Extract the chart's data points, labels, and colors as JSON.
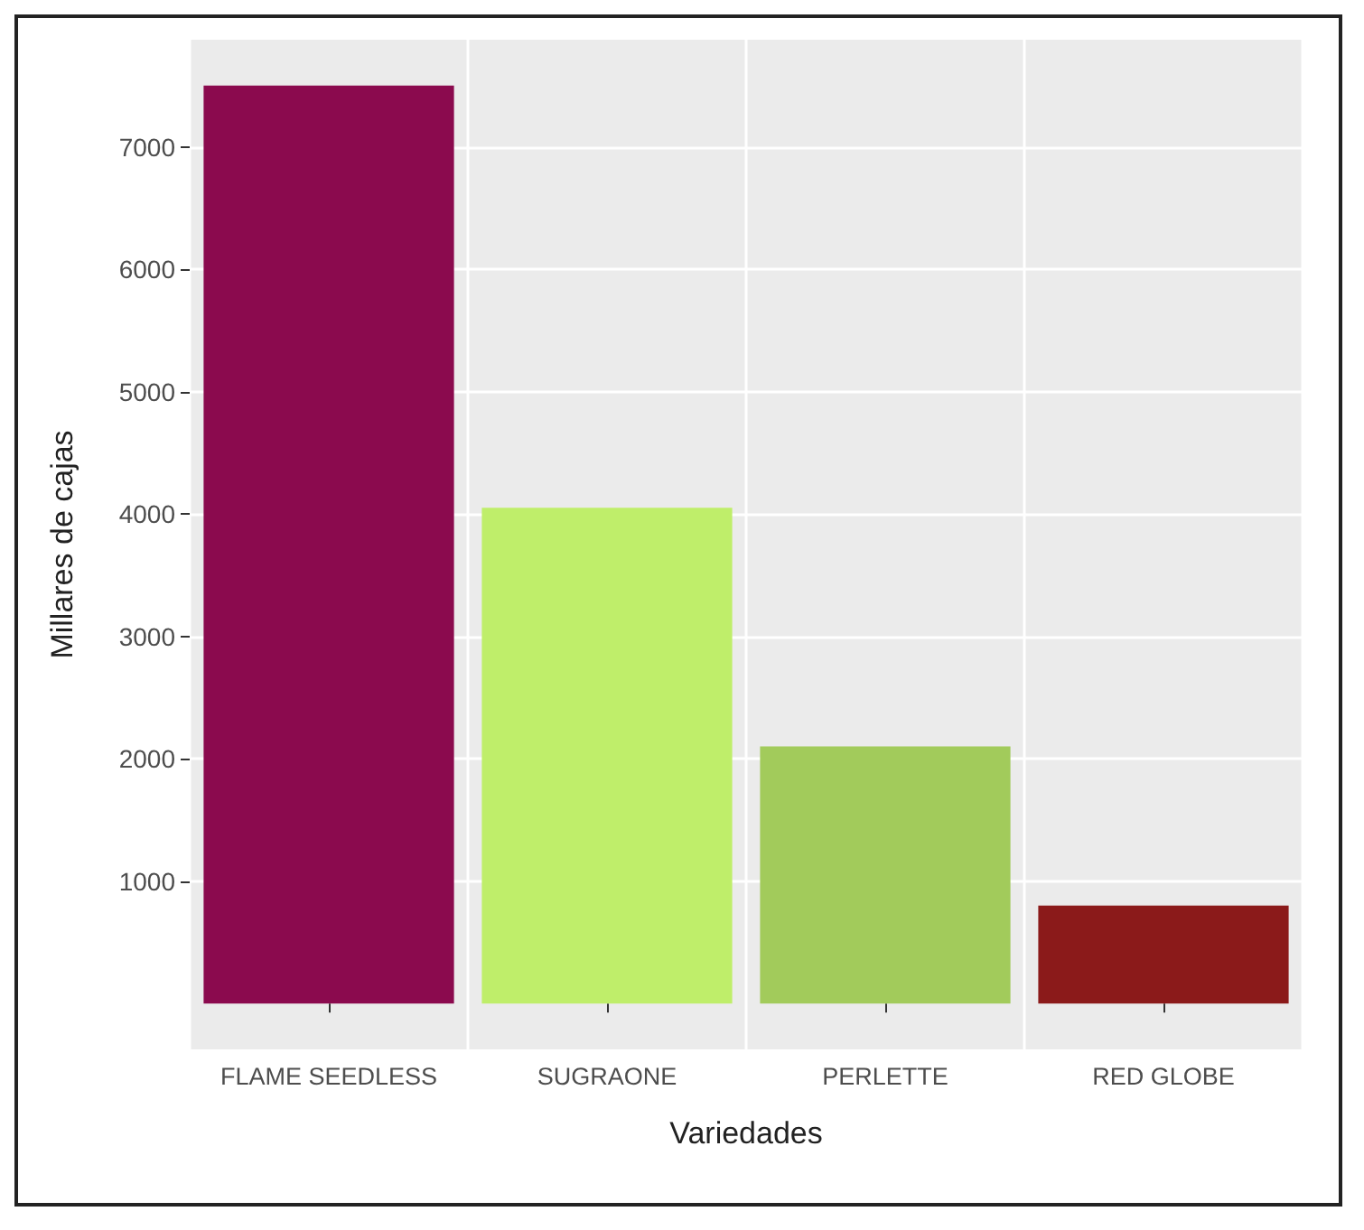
{
  "chart_data": {
    "type": "bar",
    "xlabel": "Variedades",
    "ylabel": "Millares de cajas",
    "categories": [
      "FLAME SEEDLESS",
      "SUGRAONE",
      "PERLETTE",
      "RED GLOBE"
    ],
    "values": [
      7500,
      4050,
      2100,
      800
    ],
    "colors": [
      "#8b0a4e",
      "#bfee6a",
      "#a2cb5b",
      "#8b1a1a"
    ],
    "ylim": [
      -375,
      7875
    ],
    "yticks": [
      1000,
      2000,
      3000,
      4000,
      5000,
      6000,
      7000
    ],
    "grid": true
  }
}
